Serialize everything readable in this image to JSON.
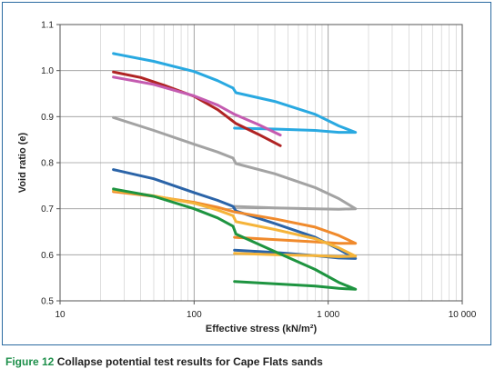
{
  "caption": {
    "figure_label": "Figure 12",
    "text": "Collapse potential test results for Cape Flats sands",
    "label_color": "#1d8f4a"
  },
  "chart_data": {
    "type": "line",
    "title": "",
    "xlabel": "Effective stress (kN/m²)",
    "ylabel": "Void ratio (e)",
    "xscale": "log",
    "xlim": [
      10,
      10000
    ],
    "ylim": [
      0.5,
      1.1
    ],
    "xticks": [
      10,
      100,
      1000,
      10000
    ],
    "xtick_labels": [
      "10",
      "100",
      "1 000",
      "10 000"
    ],
    "yticks": [
      0.5,
      0.6,
      0.7,
      0.8,
      0.9,
      1.0,
      1.1
    ],
    "ytick_labels": [
      "0.5",
      "0.6",
      "0.7",
      "0.8",
      "0.9",
      "1.0",
      "1.1"
    ],
    "grid": true,
    "legend": "none",
    "series": [
      {
        "color": "#29a9e1",
        "points": [
          [
            25,
            1.037
          ],
          [
            50,
            1.02
          ],
          [
            100,
            0.998
          ],
          [
            150,
            0.978
          ],
          [
            195,
            0.962
          ],
          [
            200,
            0.957
          ],
          [
            205,
            0.952
          ],
          [
            400,
            0.933
          ],
          [
            800,
            0.905
          ],
          [
            1200,
            0.88
          ],
          [
            1600,
            0.866
          ],
          [
            1200,
            0.866
          ],
          [
            800,
            0.87
          ],
          [
            400,
            0.873
          ],
          [
            200,
            0.875
          ]
        ]
      },
      {
        "color": "#b02424",
        "points": [
          [
            25,
            0.997
          ],
          [
            40,
            0.985
          ],
          [
            60,
            0.968
          ],
          [
            100,
            0.944
          ],
          [
            150,
            0.915
          ],
          [
            195,
            0.89
          ],
          [
            205,
            0.885
          ],
          [
            300,
            0.862
          ],
          [
            440,
            0.837
          ]
        ]
      },
      {
        "color": "#c45bb0",
        "points": [
          [
            25,
            0.986
          ],
          [
            50,
            0.97
          ],
          [
            100,
            0.945
          ],
          [
            150,
            0.925
          ],
          [
            200,
            0.905
          ],
          [
            300,
            0.883
          ],
          [
            440,
            0.86
          ]
        ]
      },
      {
        "color": "#a3a3a3",
        "points": [
          [
            25,
            0.898
          ],
          [
            50,
            0.87
          ],
          [
            100,
            0.84
          ],
          [
            150,
            0.823
          ],
          [
            195,
            0.81
          ],
          [
            205,
            0.798
          ],
          [
            400,
            0.776
          ],
          [
            800,
            0.746
          ],
          [
            1200,
            0.722
          ],
          [
            1600,
            0.7
          ],
          [
            1200,
            0.699
          ],
          [
            800,
            0.7
          ],
          [
            400,
            0.702
          ],
          [
            200,
            0.705
          ]
        ]
      },
      {
        "color": "#2b64a8",
        "points": [
          [
            25,
            0.785
          ],
          [
            50,
            0.765
          ],
          [
            100,
            0.735
          ],
          [
            150,
            0.718
          ],
          [
            195,
            0.705
          ],
          [
            205,
            0.695
          ],
          [
            400,
            0.668
          ],
          [
            800,
            0.638
          ],
          [
            1200,
            0.612
          ],
          [
            1600,
            0.592
          ],
          [
            1200,
            0.593
          ],
          [
            800,
            0.598
          ],
          [
            400,
            0.605
          ],
          [
            200,
            0.61
          ]
        ]
      },
      {
        "color": "#f08a2c",
        "points": [
          [
            25,
            0.737
          ],
          [
            50,
            0.727
          ],
          [
            100,
            0.714
          ],
          [
            150,
            0.703
          ],
          [
            200,
            0.693
          ],
          [
            400,
            0.678
          ],
          [
            800,
            0.66
          ],
          [
            1200,
            0.642
          ],
          [
            1600,
            0.625
          ],
          [
            1200,
            0.625
          ],
          [
            800,
            0.628
          ],
          [
            400,
            0.633
          ],
          [
            200,
            0.638
          ]
        ]
      },
      {
        "color": "#f5b43a",
        "points": [
          [
            25,
            0.74
          ],
          [
            50,
            0.728
          ],
          [
            100,
            0.712
          ],
          [
            150,
            0.697
          ],
          [
            195,
            0.685
          ],
          [
            205,
            0.672
          ],
          [
            400,
            0.655
          ],
          [
            800,
            0.635
          ],
          [
            1200,
            0.615
          ],
          [
            1600,
            0.597
          ],
          [
            1200,
            0.596
          ],
          [
            800,
            0.598
          ],
          [
            400,
            0.6
          ],
          [
            200,
            0.603
          ]
        ]
      },
      {
        "color": "#1e9440",
        "points": [
          [
            25,
            0.743
          ],
          [
            50,
            0.727
          ],
          [
            100,
            0.7
          ],
          [
            150,
            0.68
          ],
          [
            195,
            0.662
          ],
          [
            205,
            0.645
          ],
          [
            400,
            0.607
          ],
          [
            800,
            0.568
          ],
          [
            1200,
            0.54
          ],
          [
            1600,
            0.525
          ],
          [
            1200,
            0.527
          ],
          [
            800,
            0.532
          ],
          [
            400,
            0.537
          ],
          [
            200,
            0.542
          ]
        ]
      }
    ]
  }
}
